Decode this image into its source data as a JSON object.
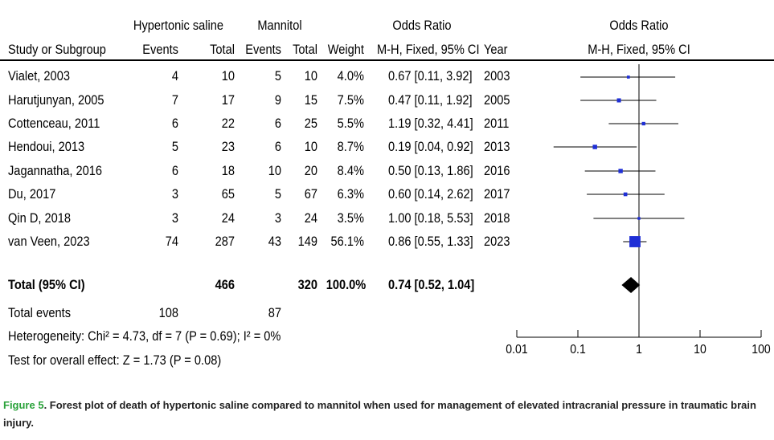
{
  "headers": {
    "group1": "Hypertonic saline",
    "group2": "Mannitol",
    "or_group": "Odds Ratio",
    "plot_group": "Odds Ratio",
    "study": "Study or Subgroup",
    "events1": "Events",
    "total1": "Total",
    "events2": "Events",
    "total2": "Total",
    "weight": "Weight",
    "or_method": "M-H, Fixed, 95% CI",
    "year": "Year",
    "plot_method": "M-H, Fixed, 95% CI"
  },
  "studies": [
    {
      "name": "Vialet, 2003",
      "e1": "4",
      "t1": "10",
      "e2": "5",
      "t2": "10",
      "weight": "4.0%",
      "ci": "0.67 [0.11, 3.92]",
      "year": "2003"
    },
    {
      "name": "Harutjunyan, 2005",
      "e1": "7",
      "t1": "17",
      "e2": "9",
      "t2": "15",
      "weight": "7.5%",
      "ci": "0.47 [0.11, 1.92]",
      "year": "2005"
    },
    {
      "name": "Cottenceau, 2011",
      "e1": "6",
      "t1": "22",
      "e2": "6",
      "t2": "25",
      "weight": "5.5%",
      "ci": "1.19 [0.32, 4.41]",
      "year": "2011"
    },
    {
      "name": "Hendoui, 2013",
      "e1": "5",
      "t1": "23",
      "e2": "6",
      "t2": "10",
      "weight": "8.7%",
      "ci": "0.19 [0.04, 0.92]",
      "year": "2013"
    },
    {
      "name": "Jagannatha, 2016",
      "e1": "6",
      "t1": "18",
      "e2": "10",
      "t2": "20",
      "weight": "8.4%",
      "ci": "0.50 [0.13, 1.86]",
      "year": "2016"
    },
    {
      "name": "Du, 2017",
      "e1": "3",
      "t1": "65",
      "e2": "5",
      "t2": "67",
      "weight": "6.3%",
      "ci": "0.60 [0.14, 2.62]",
      "year": "2017"
    },
    {
      "name": "Qin D, 2018",
      "e1": "3",
      "t1": "24",
      "e2": "3",
      "t2": "24",
      "weight": "3.5%",
      "ci": "1.00 [0.18, 5.53]",
      "year": "2018"
    },
    {
      "name": "van Veen, 2023",
      "e1": "74",
      "t1": "287",
      "e2": "43",
      "t2": "149",
      "weight": "56.1%",
      "ci": "0.86 [0.55, 1.33]",
      "year": "2023"
    }
  ],
  "total": {
    "label": "Total (95% CI)",
    "t1": "466",
    "t2": "320",
    "weight": "100.0%",
    "ci": "0.74 [0.52, 1.04]"
  },
  "total_events": {
    "label": "Total events",
    "e1": "108",
    "e2": "87"
  },
  "heterogeneity": "Heterogeneity: Chi² = 4.73, df = 7 (P = 0.69); I² = 0%",
  "overall_effect": "Test for overall effect: Z = 1.73 (P = 0.08)",
  "caption": {
    "label": "Figure 5",
    "text": ". Forest plot of death of hypertonic saline compared to mannitol when used for management of elevated intracranial pressure in traumatic brain injury."
  },
  "colors": {
    "marker": "#1f2fd6",
    "diamond": "#000000",
    "caption_label": "#2aa23a"
  },
  "chart_data": {
    "type": "scatter",
    "scale": "log",
    "x_ticks": [
      "0.01",
      "0.1",
      "1",
      "10",
      "100"
    ],
    "xlim": [
      0.01,
      100
    ],
    "reference_line": 1,
    "points": [
      {
        "or": 0.67,
        "lo": 0.11,
        "hi": 3.92,
        "weight": 4.0
      },
      {
        "or": 0.47,
        "lo": 0.11,
        "hi": 1.92,
        "weight": 7.5
      },
      {
        "or": 1.19,
        "lo": 0.32,
        "hi": 4.41,
        "weight": 5.5
      },
      {
        "or": 0.19,
        "lo": 0.04,
        "hi": 0.92,
        "weight": 8.7
      },
      {
        "or": 0.5,
        "lo": 0.13,
        "hi": 1.86,
        "weight": 8.4
      },
      {
        "or": 0.6,
        "lo": 0.14,
        "hi": 2.62,
        "weight": 6.3
      },
      {
        "or": 1.0,
        "lo": 0.18,
        "hi": 5.53,
        "weight": 3.5
      },
      {
        "or": 0.86,
        "lo": 0.55,
        "hi": 1.33,
        "weight": 56.1
      }
    ],
    "pooled": {
      "or": 0.74,
      "lo": 0.52,
      "hi": 1.04
    }
  }
}
